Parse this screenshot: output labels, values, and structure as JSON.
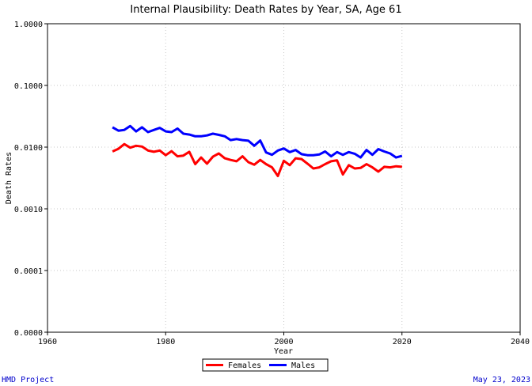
{
  "chart_data": {
    "type": "line",
    "title": "Internal Plausibility: Death Rates by Year, SA, Age 61",
    "xlabel": "Year",
    "ylabel": "Death Rates",
    "xlim": [
      1960,
      2040
    ],
    "ylim": [
      0.0,
      1.0
    ],
    "log_scale_y": true,
    "x_ticks": [
      1960,
      1980,
      2000,
      2020,
      2040
    ],
    "x_tick_labels": [
      "1960",
      "1980",
      "2000",
      "2020",
      "2040"
    ],
    "y_tick_values": [
      1e-05,
      0.0001,
      0.001,
      0.01,
      0.1,
      1.0
    ],
    "y_tick_labels": [
      "0.0000",
      "0.0001",
      "0.0010",
      "0.0100",
      "0.1000",
      "1.0000"
    ],
    "grid": true,
    "legend_position": "bottom-center",
    "series": [
      {
        "name": "Females",
        "color": "#ff0000",
        "x": [
          1971,
          1972,
          1973,
          1974,
          1975,
          1976,
          1977,
          1978,
          1979,
          1980,
          1981,
          1982,
          1983,
          1984,
          1985,
          1986,
          1987,
          1988,
          1989,
          1990,
          1991,
          1992,
          1993,
          1994,
          1995,
          1996,
          1997,
          1998,
          1999,
          2000,
          2001,
          2002,
          2003,
          2004,
          2005,
          2006,
          2007,
          2008,
          2009,
          2010,
          2011,
          2012,
          2013,
          2014,
          2015,
          2016,
          2017,
          2018,
          2019,
          2020
        ],
        "y": [
          0.0085,
          0.0094,
          0.0112,
          0.0098,
          0.0105,
          0.0102,
          0.0088,
          0.0084,
          0.0088,
          0.0074,
          0.0086,
          0.0071,
          0.0073,
          0.0084,
          0.0053,
          0.0068,
          0.0054,
          0.007,
          0.0079,
          0.0066,
          0.0062,
          0.0059,
          0.0071,
          0.0057,
          0.0052,
          0.0062,
          0.0053,
          0.0047,
          0.0034,
          0.006,
          0.0051,
          0.0066,
          0.0064,
          0.0054,
          0.0045,
          0.0047,
          0.0053,
          0.0059,
          0.0061,
          0.0036,
          0.0051,
          0.0045,
          0.0046,
          0.0053,
          0.0047,
          0.004,
          0.0048,
          0.0047,
          0.0049,
          0.0048
        ]
      },
      {
        "name": "Males",
        "color": "#0000ff",
        "x": [
          1971,
          1972,
          1973,
          1974,
          1975,
          1976,
          1977,
          1978,
          1979,
          1980,
          1981,
          1982,
          1983,
          1984,
          1985,
          1986,
          1987,
          1988,
          1989,
          1990,
          1991,
          1992,
          1993,
          1994,
          1995,
          1996,
          1997,
          1998,
          1999,
          2000,
          2001,
          2002,
          2003,
          2004,
          2005,
          2006,
          2007,
          2008,
          2009,
          2010,
          2011,
          2012,
          2013,
          2014,
          2015,
          2016,
          2017,
          2018,
          2019,
          2020
        ],
        "y": [
          0.021,
          0.0185,
          0.019,
          0.022,
          0.018,
          0.021,
          0.0175,
          0.019,
          0.0205,
          0.018,
          0.0175,
          0.02,
          0.0165,
          0.016,
          0.015,
          0.015,
          0.0155,
          0.0165,
          0.0158,
          0.015,
          0.013,
          0.0135,
          0.013,
          0.0127,
          0.0105,
          0.0128,
          0.0082,
          0.0075,
          0.0088,
          0.0095,
          0.0083,
          0.009,
          0.0077,
          0.0074,
          0.0074,
          0.0076,
          0.0085,
          0.0071,
          0.0083,
          0.0075,
          0.0083,
          0.0078,
          0.0068,
          0.009,
          0.0075,
          0.0093,
          0.0085,
          0.0079,
          0.0068,
          0.0072
        ]
      }
    ]
  },
  "footer": {
    "left": "HMD Project",
    "right": "May 23, 2023"
  }
}
